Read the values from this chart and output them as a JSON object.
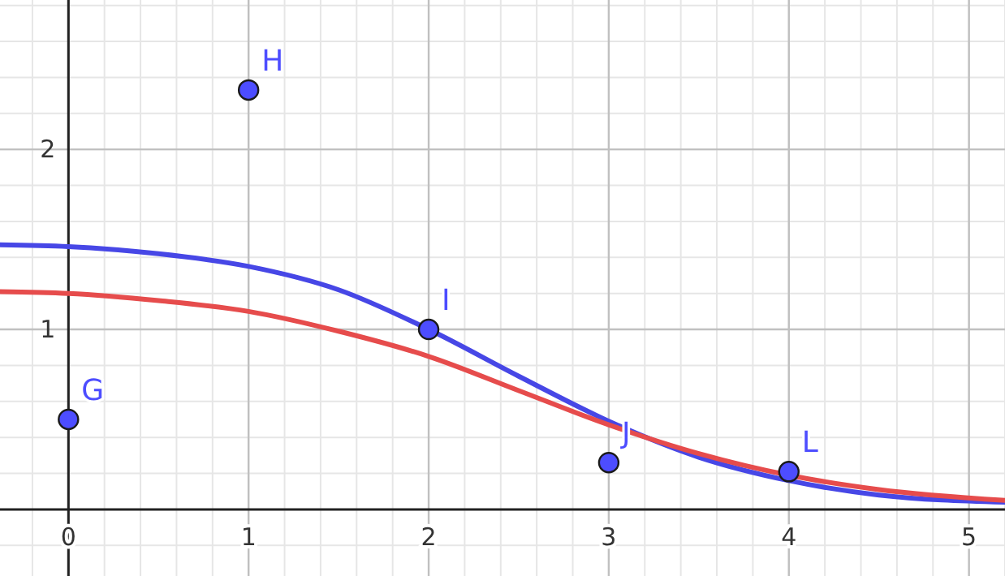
{
  "chart_data": {
    "type": "line",
    "xlim": [
      -0.38,
      5.2
    ],
    "ylim": [
      -0.37,
      2.83
    ],
    "xticks": [
      0,
      1,
      2,
      3,
      4,
      5
    ],
    "yticks": [
      1,
      2
    ],
    "grid": true,
    "series": [
      {
        "color": "#4747e6",
        "x": [
          -0.38,
          0,
          0.5,
          1,
          1.5,
          2,
          2.5,
          3,
          3.5,
          4,
          4.5,
          5.2
        ],
        "values": [
          1.47,
          1.46,
          1.42,
          1.35,
          1.22,
          1.0,
          0.74,
          0.49,
          0.29,
          0.16,
          0.08,
          0.04
        ]
      },
      {
        "color": "#e64c4c",
        "x": [
          -0.38,
          0,
          0.5,
          1,
          1.5,
          2,
          2.5,
          3,
          3.5,
          4,
          4.5,
          5.2
        ],
        "values": [
          1.21,
          1.2,
          1.16,
          1.1,
          0.99,
          0.85,
          0.66,
          0.47,
          0.31,
          0.19,
          0.11,
          0.05
        ]
      },
      {
        "type": "scatter",
        "color": "#4d4dff",
        "marker": "circle",
        "x": [
          0,
          1,
          2,
          3,
          4
        ],
        "values": [
          0.5,
          2.33,
          1.0,
          0.26,
          0.21
        ]
      }
    ],
    "annotations": [
      {
        "text": "G",
        "x": 0,
        "y": 0.5
      },
      {
        "text": "H",
        "x": 1,
        "y": 2.33
      },
      {
        "text": "I",
        "x": 2,
        "y": 1.0
      },
      {
        "text": "J",
        "x": 3,
        "y": 0.26
      },
      {
        "text": "L",
        "x": 4,
        "y": 0.21
      }
    ]
  }
}
